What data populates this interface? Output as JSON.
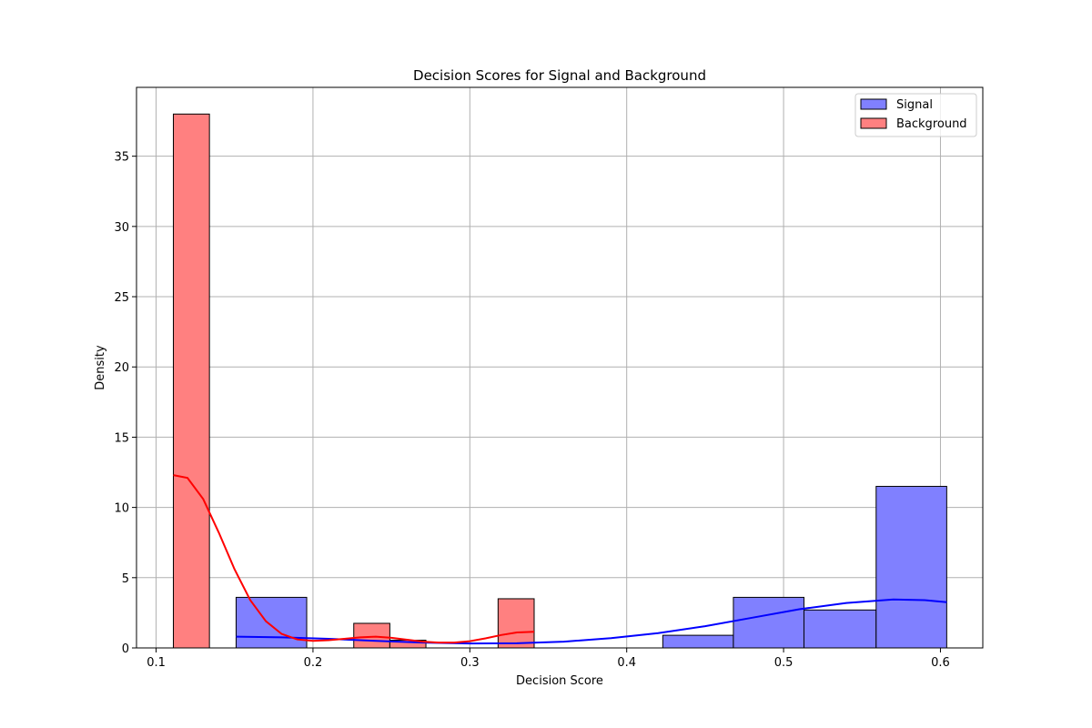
{
  "chart_data": {
    "type": "bar",
    "title": "Decision Scores for Signal and Background",
    "xlabel": "Decision Score",
    "ylabel": "Density",
    "xlim": [
      0.0875,
      0.627
    ],
    "ylim": [
      0,
      39.9
    ],
    "x_ticks": [
      "0.1",
      "0.2",
      "0.3",
      "0.4",
      "0.5",
      "0.6"
    ],
    "y_ticks": [
      "0",
      "5",
      "10",
      "15",
      "20",
      "25",
      "30",
      "35"
    ],
    "grid": true,
    "legend_position": "top-right",
    "series": [
      {
        "name": "Signal",
        "color": "#8080ff",
        "line_color": "#0000ff",
        "bins": [
          {
            "x0": 0.151,
            "x1": 0.196,
            "value": 3.6
          },
          {
            "x0": 0.196,
            "x1": 0.242,
            "value": 0.0
          },
          {
            "x0": 0.242,
            "x1": 0.287,
            "value": 0.0
          },
          {
            "x0": 0.287,
            "x1": 0.332,
            "value": 0.0
          },
          {
            "x0": 0.332,
            "x1": 0.378,
            "value": 0.0
          },
          {
            "x0": 0.378,
            "x1": 0.423,
            "value": 0.0
          },
          {
            "x0": 0.423,
            "x1": 0.468,
            "value": 0.9
          },
          {
            "x0": 0.468,
            "x1": 0.513,
            "value": 3.6
          },
          {
            "x0": 0.513,
            "x1": 0.559,
            "value": 2.7
          },
          {
            "x0": 0.559,
            "x1": 0.604,
            "value": 11.5
          }
        ],
        "kde": [
          [
            0.151,
            0.8
          ],
          [
            0.18,
            0.75
          ],
          [
            0.21,
            0.65
          ],
          [
            0.24,
            0.5
          ],
          [
            0.27,
            0.38
          ],
          [
            0.3,
            0.32
          ],
          [
            0.33,
            0.33
          ],
          [
            0.36,
            0.45
          ],
          [
            0.39,
            0.7
          ],
          [
            0.42,
            1.05
          ],
          [
            0.45,
            1.55
          ],
          [
            0.48,
            2.15
          ],
          [
            0.51,
            2.75
          ],
          [
            0.54,
            3.2
          ],
          [
            0.57,
            3.45
          ],
          [
            0.59,
            3.4
          ],
          [
            0.604,
            3.25
          ]
        ]
      },
      {
        "name": "Background",
        "color": "#ff8080",
        "line_color": "#ff0000",
        "bins": [
          {
            "x0": 0.111,
            "x1": 0.134,
            "value": 38.0
          },
          {
            "x0": 0.134,
            "x1": 0.157,
            "value": 0.0
          },
          {
            "x0": 0.157,
            "x1": 0.18,
            "value": 0.0
          },
          {
            "x0": 0.18,
            "x1": 0.203,
            "value": 0.0
          },
          {
            "x0": 0.203,
            "x1": 0.226,
            "value": 0.0
          },
          {
            "x0": 0.226,
            "x1": 0.249,
            "value": 1.75
          },
          {
            "x0": 0.249,
            "x1": 0.272,
            "value": 0.55
          },
          {
            "x0": 0.272,
            "x1": 0.295,
            "value": 0.0
          },
          {
            "x0": 0.295,
            "x1": 0.318,
            "value": 0.0
          },
          {
            "x0": 0.318,
            "x1": 0.341,
            "value": 3.5
          }
        ],
        "kde": [
          [
            0.111,
            12.3
          ],
          [
            0.12,
            12.1
          ],
          [
            0.13,
            10.6
          ],
          [
            0.14,
            8.2
          ],
          [
            0.15,
            5.6
          ],
          [
            0.16,
            3.4
          ],
          [
            0.17,
            1.9
          ],
          [
            0.18,
            1.0
          ],
          [
            0.19,
            0.6
          ],
          [
            0.2,
            0.5
          ],
          [
            0.21,
            0.55
          ],
          [
            0.22,
            0.65
          ],
          [
            0.23,
            0.75
          ],
          [
            0.24,
            0.8
          ],
          [
            0.25,
            0.72
          ],
          [
            0.26,
            0.58
          ],
          [
            0.27,
            0.45
          ],
          [
            0.28,
            0.38
          ],
          [
            0.29,
            0.38
          ],
          [
            0.3,
            0.48
          ],
          [
            0.31,
            0.68
          ],
          [
            0.32,
            0.92
          ],
          [
            0.33,
            1.1
          ],
          [
            0.341,
            1.15
          ]
        ]
      }
    ]
  }
}
